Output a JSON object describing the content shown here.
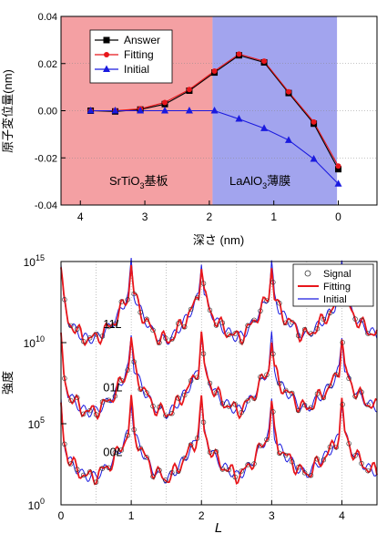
{
  "chart_data": [
    {
      "type": "line",
      "xlabel": "深さ (nm)",
      "ylabel": "原子変位量(nm)",
      "xlim": [
        4.3,
        -0.6
      ],
      "ylim": [
        -0.04,
        0.04
      ],
      "x_ticks": [
        "4",
        "3",
        "2",
        "1",
        "0"
      ],
      "y_ticks": [
        "0.04",
        "0.02",
        "0.00",
        "-0.02",
        "-0.04"
      ],
      "x_tick_values": [
        4,
        3,
        2,
        1,
        0
      ],
      "y_tick_values": [
        0.04,
        0.02,
        0.0,
        -0.02,
        -0.04
      ],
      "regions": [
        {
          "label_prefix": "SrTiO",
          "label_sub": "3",
          "label_suffix": "基板",
          "from": 4.3,
          "to": 1.95,
          "color": "#f4a0a3"
        },
        {
          "label_prefix": "LaAlO",
          "label_sub": "3",
          "label_suffix": "薄膜",
          "from": 1.95,
          "to": 0.02,
          "color": "#a2a4ee"
        }
      ],
      "legend_position": "top-left",
      "series": [
        {
          "name": "Answer",
          "color": "#000000",
          "marker": "square",
          "x": [
            3.84,
            3.46,
            3.07,
            2.69,
            2.31,
            1.92,
            1.54,
            1.15,
            0.77,
            0.38,
            0.0
          ],
          "y": [
            0.0,
            -0.0003,
            0.0005,
            0.0028,
            0.0085,
            0.0162,
            0.0235,
            0.0205,
            0.0075,
            -0.0055,
            -0.0248
          ]
        },
        {
          "name": "Fitting",
          "color": "#e8161b",
          "marker": "circle",
          "x": [
            3.84,
            3.46,
            3.07,
            2.69,
            2.31,
            1.92,
            1.54,
            1.15,
            0.77,
            0.38,
            0.0
          ],
          "y": [
            0.0,
            0.0,
            0.0008,
            0.0035,
            0.009,
            0.0168,
            0.024,
            0.021,
            0.008,
            -0.0048,
            -0.0235
          ]
        },
        {
          "name": "Initial",
          "color": "#1a1adf",
          "marker": "triangle",
          "x": [
            3.84,
            3.46,
            3.07,
            2.69,
            2.31,
            1.92,
            1.54,
            1.15,
            0.77,
            0.38,
            0.0
          ],
          "y": [
            0.0,
            0.0,
            0.0,
            0.0,
            0.0,
            0.0,
            -0.0035,
            -0.0075,
            -0.0125,
            -0.0205,
            -0.031
          ]
        }
      ]
    },
    {
      "type": "line",
      "xlabel": "L",
      "ylabel": "強度",
      "ylog": true,
      "xlim": [
        0,
        4.5
      ],
      "ylim_exponent": [
        0,
        15
      ],
      "x_ticks": [
        "0",
        "1",
        "2",
        "3",
        "4"
      ],
      "x_tick_values": [
        0,
        1,
        2,
        3,
        4
      ],
      "y_ticks": [
        {
          "base": "10",
          "exp": "0",
          "value": 0
        },
        {
          "base": "10",
          "exp": "5",
          "value": 5
        },
        {
          "base": "10",
          "exp": "10",
          "value": 10
        },
        {
          "base": "10",
          "exp": "15",
          "value": 15
        }
      ],
      "dotted_gridlines_x": [
        0.5,
        1,
        1.5,
        2,
        2.5,
        3,
        3.5,
        4
      ],
      "curve_labels": [
        {
          "prefix": "11",
          "italic": "L",
          "x": 0.6,
          "y_exp": 10.9
        },
        {
          "prefix": "01",
          "italic": "L",
          "x": 0.6,
          "y_exp": 7.0
        },
        {
          "prefix": "00",
          "italic": "L",
          "x": 0.6,
          "y_exp": 3.0
        }
      ],
      "legend_position": "top-right",
      "series": [
        {
          "name": "Signal",
          "color": "#333333",
          "marker": "open-circle"
        },
        {
          "name": "Fitting",
          "color": "#e8161b"
        },
        {
          "name": "Initial",
          "color": "#1a1adf"
        }
      ],
      "rod_offsets_exp": [
        10,
        5.5,
        1.5
      ],
      "rod_base_profile_exp": {
        "x": [
          0.0,
          0.1,
          0.2,
          0.3,
          0.4,
          0.5,
          0.6,
          0.7,
          0.8,
          0.9,
          1.0,
          1.1,
          1.2,
          1.3,
          1.4,
          1.5,
          1.6,
          1.7,
          1.8,
          1.9,
          2.0,
          2.1,
          2.2,
          2.3,
          2.4,
          2.5,
          2.6,
          2.7,
          2.8,
          2.9,
          3.0,
          3.1,
          3.2,
          3.3,
          3.4,
          3.5,
          3.6,
          3.7,
          3.8,
          3.9,
          4.0,
          4.1,
          4.2,
          4.3,
          4.4,
          4.5
        ],
        "y": [
          3.2,
          1.4,
          0.8,
          0.4,
          0.2,
          0.3,
          0.6,
          1.0,
          1.6,
          2.4,
          3.4,
          2.3,
          1.4,
          0.7,
          0.3,
          0.1,
          0.4,
          1.0,
          1.6,
          2.3,
          3.5,
          2.2,
          1.4,
          0.9,
          0.6,
          0.3,
          0.5,
          1.0,
          1.7,
          2.4,
          3.3,
          2.1,
          1.5,
          1.1,
          0.6,
          0.4,
          0.8,
          1.2,
          1.7,
          2.2,
          3.4,
          2.2,
          1.5,
          1.0,
          0.7,
          0.5
        ]
      }
    }
  ]
}
